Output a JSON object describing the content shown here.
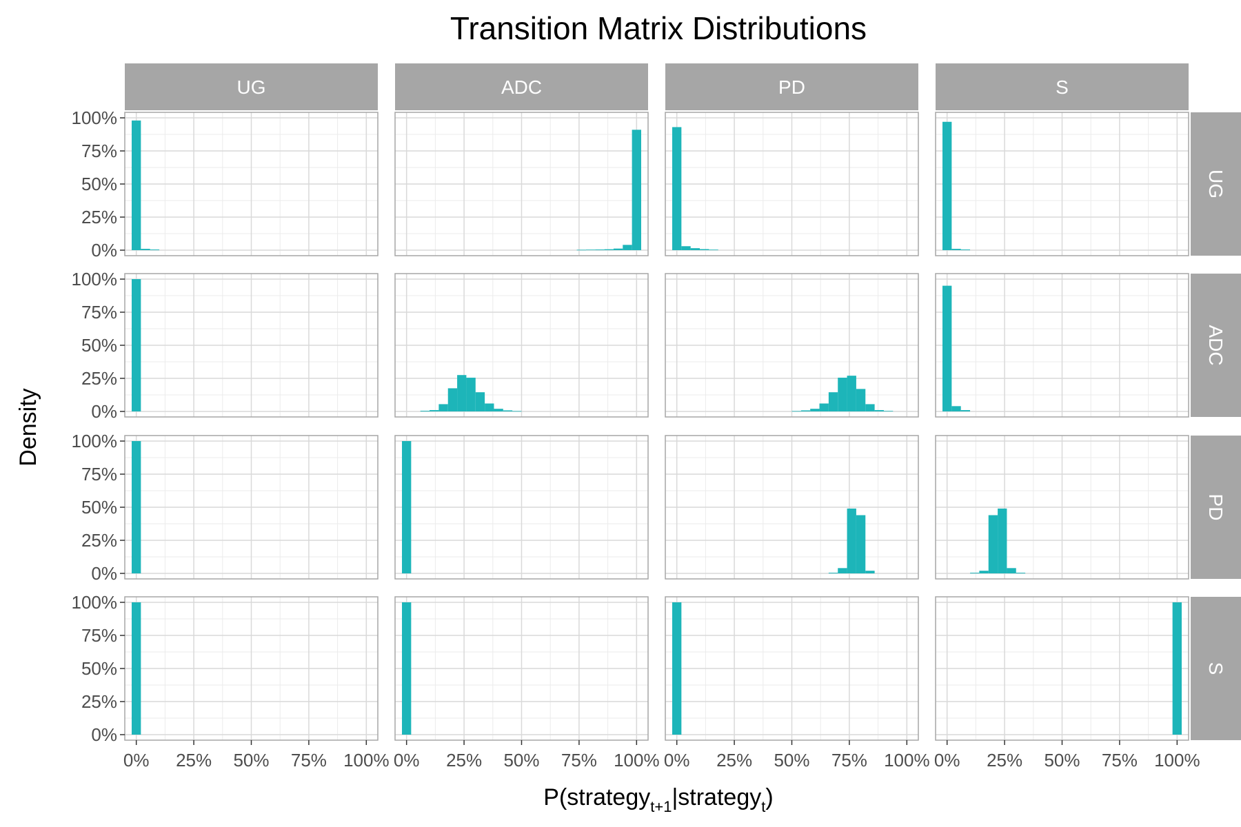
{
  "chart_data": {
    "type": "bar",
    "title": "Transition Matrix Distributions",
    "xlabel": {
      "main": "P(strategy",
      "sub1": "t+1",
      "mid": "|strategy",
      "sub2": "t",
      "end": ")"
    },
    "ylabel": "Density",
    "columns": [
      "UG",
      "ADC",
      "PD",
      "S"
    ],
    "rows": [
      "UG",
      "ADC",
      "PD",
      "S"
    ],
    "x_ticks": [
      "0%",
      "25%",
      "50%",
      "75%",
      "100%"
    ],
    "y_ticks": [
      "0%",
      "25%",
      "50%",
      "75%",
      "100%"
    ],
    "xlim": [
      -0.05,
      1.05
    ],
    "ylim": [
      0,
      1.0
    ],
    "bin_width": 0.04,
    "bar_color": "#1db5b9",
    "strip_color": "#a6a6a6",
    "grid": true,
    "panels": [
      [
        {
          "centers": [
            0,
            0.04,
            0.08
          ],
          "values": [
            0.98,
            0.01,
            0.005
          ]
        },
        {
          "centers": [
            0.76,
            0.8,
            0.84,
            0.88,
            0.92,
            0.96,
            1.0
          ],
          "values": [
            0.003,
            0.004,
            0.005,
            0.007,
            0.012,
            0.04,
            0.91
          ]
        },
        {
          "centers": [
            0,
            0.04,
            0.08,
            0.12,
            0.16
          ],
          "values": [
            0.93,
            0.03,
            0.015,
            0.008,
            0.004
          ]
        },
        {
          "centers": [
            0,
            0.04,
            0.08
          ],
          "values": [
            0.97,
            0.01,
            0.005
          ]
        }
      ],
      [
        {
          "centers": [
            0
          ],
          "values": [
            1.0
          ]
        },
        {
          "centers": [
            0.08,
            0.12,
            0.16,
            0.2,
            0.24,
            0.28,
            0.32,
            0.36,
            0.4,
            0.44,
            0.48
          ],
          "values": [
            0.005,
            0.01,
            0.055,
            0.175,
            0.275,
            0.255,
            0.145,
            0.06,
            0.02,
            0.008,
            0.003
          ]
        },
        {
          "centers": [
            0.52,
            0.56,
            0.6,
            0.64,
            0.68,
            0.72,
            0.76,
            0.8,
            0.84,
            0.88,
            0.92
          ],
          "values": [
            0.003,
            0.008,
            0.02,
            0.06,
            0.145,
            0.255,
            0.27,
            0.17,
            0.055,
            0.01,
            0.004
          ]
        },
        {
          "centers": [
            0,
            0.04,
            0.08
          ],
          "values": [
            0.95,
            0.04,
            0.01
          ]
        }
      ],
      [
        {
          "centers": [
            0
          ],
          "values": [
            1.0
          ]
        },
        {
          "centers": [
            0
          ],
          "values": [
            1.0
          ]
        },
        {
          "centers": [
            0.68,
            0.72,
            0.76,
            0.8,
            0.84
          ],
          "values": [
            0.005,
            0.04,
            0.49,
            0.44,
            0.02
          ]
        },
        {
          "centers": [
            0.12,
            0.16,
            0.2,
            0.24,
            0.28,
            0.32
          ],
          "values": [
            0.005,
            0.02,
            0.44,
            0.49,
            0.04,
            0.005
          ]
        }
      ],
      [
        {
          "centers": [
            0
          ],
          "values": [
            1.0
          ]
        },
        {
          "centers": [
            0
          ],
          "values": [
            1.0
          ]
        },
        {
          "centers": [
            0
          ],
          "values": [
            1.0
          ]
        },
        {
          "centers": [
            1.0
          ],
          "values": [
            1.0
          ]
        }
      ]
    ]
  }
}
